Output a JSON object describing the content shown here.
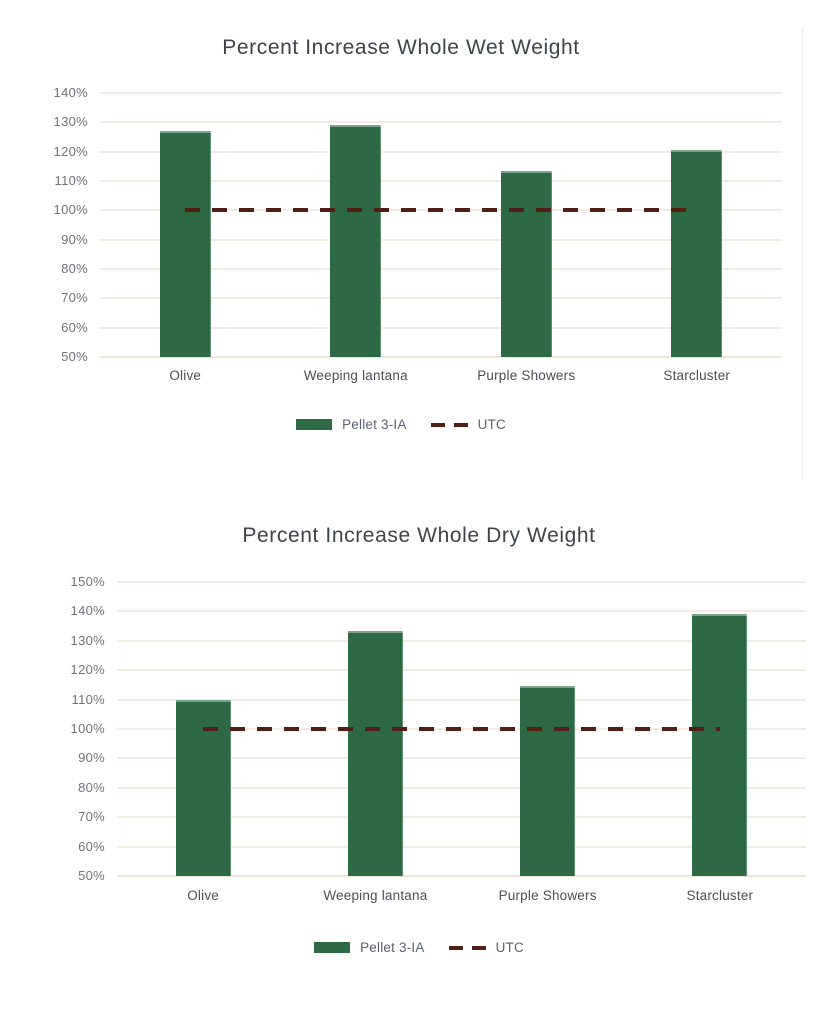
{
  "colors": {
    "bar_green": "#2d6a43",
    "reference_maroon": "#511e15",
    "gridline_cream": "#f3ebe1",
    "baseline_cream": "#efe5d8",
    "title_text": "#3f434a",
    "tick_text": "#70737a",
    "category_text": "#4a4e56",
    "legend_text": "#5a6170",
    "chart_border": "#ededed"
  },
  "chart_data": [
    {
      "type": "bar",
      "title": "Percent Increase Whole Wet Weight",
      "categories": [
        "Olive",
        "Weeping lantana",
        "Purple Showers",
        "Starcluster"
      ],
      "series": [
        {
          "name": "Pellet 3-IA",
          "values": [
            127,
            129,
            113.5,
            120.5
          ]
        }
      ],
      "reference_line": {
        "name": "UTC",
        "value": 100,
        "style": "dashed"
      },
      "ylabel_format": "percent",
      "ylim": [
        50,
        140
      ],
      "ytick_step": 10,
      "ytick_labels": [
        "140%",
        "130%",
        "120%",
        "110%",
        "100%",
        "90%",
        "80%",
        "70%",
        "60%",
        "50%"
      ],
      "grid": "horizontal",
      "legend_position": "bottom",
      "legend_entries": [
        "Pellet 3-IA",
        "UTC"
      ]
    },
    {
      "type": "bar",
      "title": "Percent Increase Whole Dry Weight",
      "categories": [
        "Olive",
        "Weeping lantana",
        "Purple Showers",
        "Starcluster"
      ],
      "series": [
        {
          "name": "Pellet 3-IA",
          "values": [
            110,
            133.5,
            114.5,
            139
          ]
        }
      ],
      "reference_line": {
        "name": "UTC",
        "value": 100,
        "style": "dashed"
      },
      "ylabel_format": "percent",
      "ylim": [
        50,
        150
      ],
      "ytick_step": 10,
      "ytick_labels": [
        "150%",
        "140%",
        "130%",
        "120%",
        "110%",
        "100%",
        "90%",
        "80%",
        "70%",
        "60%",
        "50%"
      ],
      "grid": "horizontal",
      "legend_position": "bottom",
      "legend_entries": [
        "Pellet 3-IA",
        "UTC"
      ]
    }
  ]
}
